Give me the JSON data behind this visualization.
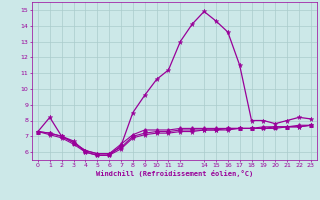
{
  "xlabel": "Windchill (Refroidissement éolien,°C)",
  "background_color": "#cce8e8",
  "grid_color": "#aacccc",
  "line_color": "#990099",
  "x_hours": [
    0,
    1,
    2,
    3,
    4,
    5,
    6,
    7,
    8,
    9,
    10,
    11,
    12,
    13,
    14,
    15,
    16,
    17,
    18,
    19,
    20,
    21,
    22,
    23
  ],
  "series1": [
    7.3,
    8.2,
    7.0,
    6.7,
    6.0,
    5.8,
    5.8,
    6.4,
    8.5,
    9.6,
    10.6,
    11.2,
    13.0,
    14.1,
    14.9,
    14.3,
    13.6,
    11.5,
    8.0,
    8.0,
    7.8,
    8.0,
    8.2,
    8.1
  ],
  "series2": [
    7.3,
    7.2,
    7.0,
    6.6,
    6.1,
    5.9,
    5.9,
    6.5,
    7.1,
    7.4,
    7.4,
    7.4,
    7.5,
    7.5,
    7.5,
    7.5,
    7.5,
    7.5,
    7.5,
    7.6,
    7.6,
    7.6,
    7.7,
    7.7
  ],
  "series3": [
    7.3,
    7.1,
    6.9,
    6.5,
    6.0,
    5.8,
    5.8,
    6.2,
    6.9,
    7.1,
    7.2,
    7.2,
    7.3,
    7.3,
    7.4,
    7.4,
    7.4,
    7.5,
    7.5,
    7.5,
    7.5,
    7.6,
    7.6,
    7.7
  ],
  "series4": [
    7.3,
    7.2,
    7.0,
    6.6,
    6.1,
    5.9,
    5.9,
    6.3,
    7.0,
    7.2,
    7.3,
    7.3,
    7.4,
    7.4,
    7.4,
    7.4,
    7.5,
    7.5,
    7.5,
    7.5,
    7.6,
    7.6,
    7.6,
    7.7
  ],
  "ylim": [
    5.5,
    15.5
  ],
  "yticks": [
    6,
    7,
    8,
    9,
    10,
    11,
    12,
    13,
    14,
    15
  ],
  "xlim": [
    -0.5,
    23.5
  ],
  "xticks": [
    0,
    1,
    2,
    3,
    4,
    5,
    6,
    7,
    8,
    9,
    10,
    11,
    12,
    14,
    15,
    16,
    17,
    18,
    19,
    20,
    21,
    22,
    23
  ]
}
